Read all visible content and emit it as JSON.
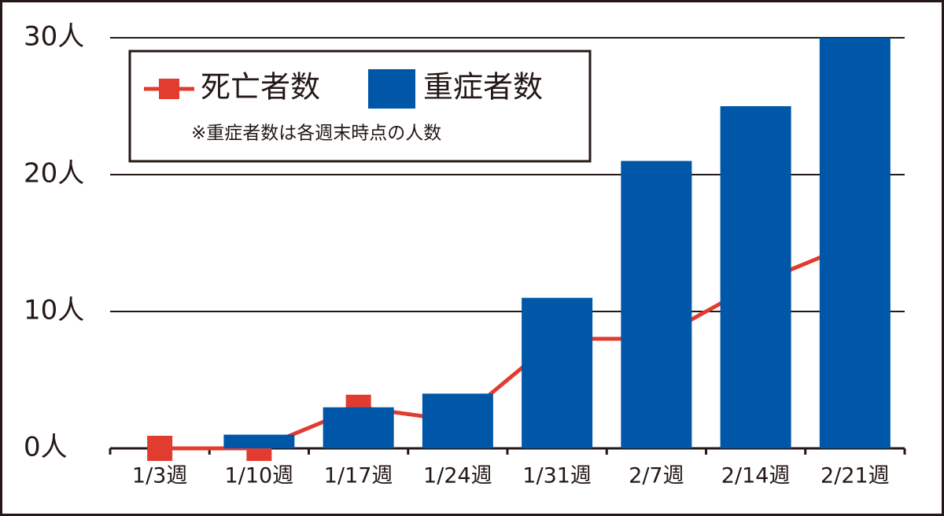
{
  "chart_data": {
    "type": "combo",
    "categories": [
      "1/3週",
      "1/10週",
      "1/17週",
      "1/24週",
      "1/31週",
      "2/7週",
      "2/14週",
      "2/21週"
    ],
    "series": [
      {
        "name": "死亡者数",
        "type": "line",
        "color": "#e23b30",
        "values": [
          0,
          0,
          3,
          2,
          8,
          8,
          12,
          15
        ]
      },
      {
        "name": "重症者数",
        "type": "bar",
        "color": "#0057a8",
        "values": [
          0,
          1,
          3,
          4,
          11,
          21,
          25,
          30
        ]
      }
    ],
    "note": "※重症者数は各週末時点の人数",
    "ylim": [
      0,
      30
    ],
    "yticks": [
      {
        "value": 0,
        "label": "0人"
      },
      {
        "value": 10,
        "label": "10人"
      },
      {
        "value": 20,
        "label": "20人"
      },
      {
        "value": 30,
        "label": "30人"
      }
    ],
    "grid": true
  }
}
